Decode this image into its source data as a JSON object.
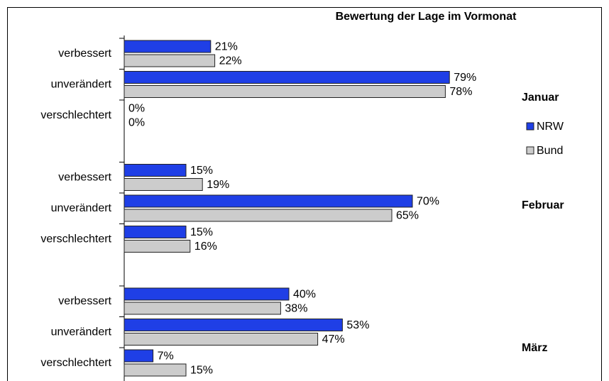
{
  "chart_data": {
    "type": "bar",
    "orientation": "horizontal",
    "title": "Bewertung der Lage im Vormonat",
    "groups": [
      "Januar",
      "Februar",
      "März"
    ],
    "categories": [
      "verbessert",
      "unverändert",
      "verschlechtert",
      "verbessert",
      "unverändert",
      "verschlechtert",
      "verbessert",
      "unverändert",
      "verschlechtert"
    ],
    "series": [
      {
        "name": "NRW",
        "color": "#1f3fe6",
        "values": [
          21,
          79,
          0,
          15,
          70,
          15,
          40,
          53,
          7
        ],
        "value_labels": [
          "21%",
          "79%",
          "0%",
          "15%",
          "70%",
          "15%",
          "40%",
          "53%",
          "7%"
        ]
      },
      {
        "name": "Bund",
        "color": "#cccccc",
        "values": [
          22,
          78,
          0,
          19,
          65,
          16,
          38,
          47,
          15
        ],
        "value_labels": [
          "22%",
          "78%",
          "0%",
          "19%",
          "65%",
          "16%",
          "38%",
          "47%",
          "15%"
        ]
      }
    ],
    "legend": "right"
  }
}
